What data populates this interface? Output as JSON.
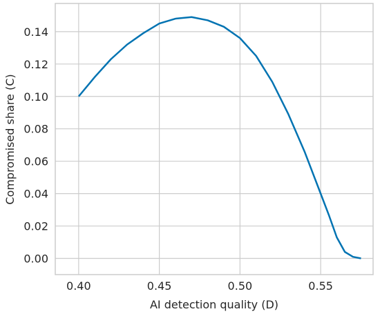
{
  "chart_data": {
    "type": "line",
    "xlabel": "AI detection quality (D)",
    "ylabel": "Compromised share (C)",
    "x": [
      0.4,
      0.41,
      0.42,
      0.43,
      0.44,
      0.45,
      0.46,
      0.47,
      0.48,
      0.49,
      0.5,
      0.51,
      0.52,
      0.53,
      0.54,
      0.55,
      0.555,
      0.56,
      0.565,
      0.57,
      0.575
    ],
    "series": [
      {
        "color": "#0173b2",
        "values": [
          0.1,
          0.112,
          0.123,
          0.132,
          0.139,
          0.145,
          0.148,
          0.149,
          0.147,
          0.143,
          0.136,
          0.125,
          0.109,
          0.089,
          0.066,
          0.04,
          0.027,
          0.013,
          0.004,
          0.001,
          0.0
        ]
      }
    ],
    "xlim": [
      0.3855,
      0.5825
    ],
    "ylim": [
      -0.01,
      0.1574
    ],
    "xticks": [
      {
        "value": 0.4,
        "label": "0.40"
      },
      {
        "value": 0.45,
        "label": "0.45"
      },
      {
        "value": 0.5,
        "label": "0.50"
      },
      {
        "value": 0.55,
        "label": "0.55"
      }
    ],
    "yticks": [
      {
        "value": 0.0,
        "label": "0.00"
      },
      {
        "value": 0.02,
        "label": "0.02"
      },
      {
        "value": 0.04,
        "label": "0.04"
      },
      {
        "value": 0.06,
        "label": "0.06"
      },
      {
        "value": 0.08,
        "label": "0.08"
      },
      {
        "value": 0.1,
        "label": "0.10"
      },
      {
        "value": 0.12,
        "label": "0.12"
      },
      {
        "value": 0.14,
        "label": "0.14"
      }
    ],
    "grid": true
  }
}
